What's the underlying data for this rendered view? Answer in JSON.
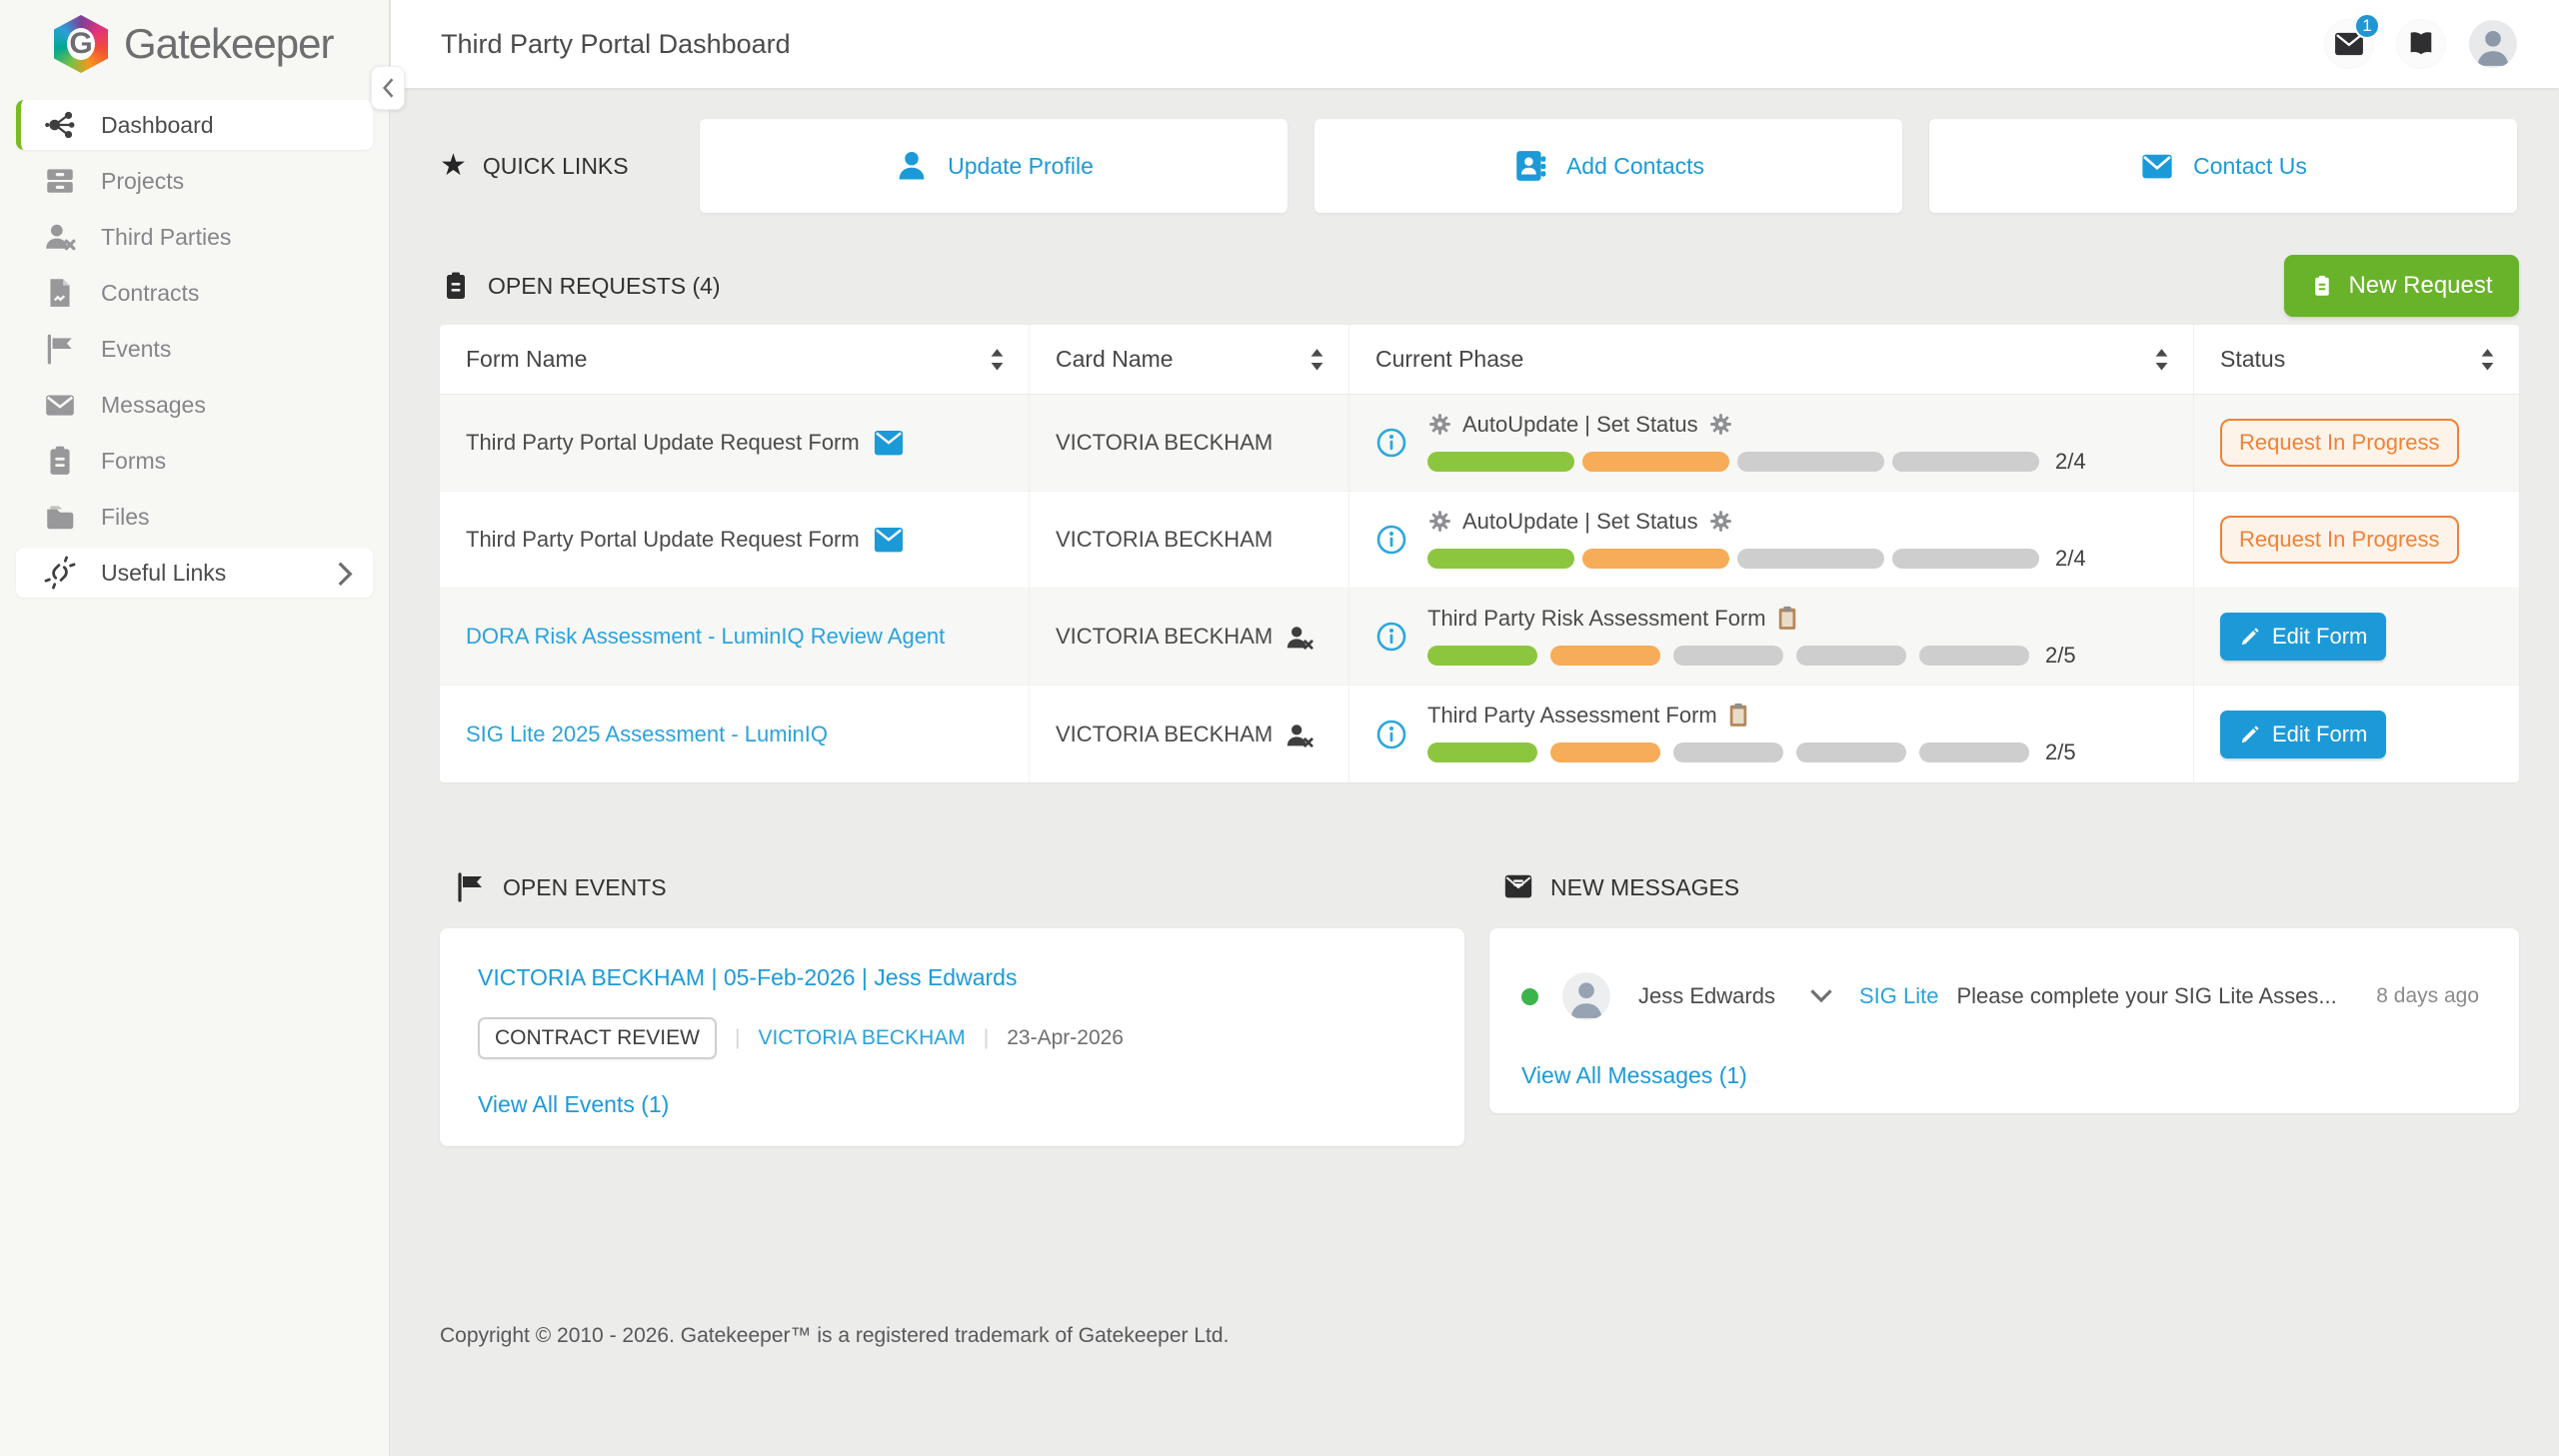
{
  "brand": {
    "name": "Gatekeeper"
  },
  "sidebar": {
    "items": [
      {
        "label": "Dashboard"
      },
      {
        "label": "Projects"
      },
      {
        "label": "Third Parties"
      },
      {
        "label": "Contracts"
      },
      {
        "label": "Events"
      },
      {
        "label": "Messages"
      },
      {
        "label": "Forms"
      },
      {
        "label": "Files"
      },
      {
        "label": "Useful Links"
      }
    ]
  },
  "header": {
    "title": "Third Party Portal Dashboard",
    "mail_badge": "1"
  },
  "quick_links": {
    "heading": "QUICK LINKS",
    "items": [
      {
        "label": "Update Profile",
        "icon": "user-icon"
      },
      {
        "label": "Add Contacts",
        "icon": "address-book-icon"
      },
      {
        "label": "Contact Us",
        "icon": "envelope-icon"
      }
    ]
  },
  "open_requests": {
    "heading": "OPEN REQUESTS (4)",
    "new_request_label": "New Request",
    "columns": [
      "Form Name",
      "Card Name",
      "Current Phase",
      "Status"
    ],
    "rows": [
      {
        "form_name": "Third Party Portal Update Request Form",
        "card_name": "VICTORIA BECKHAM",
        "phase": "AutoUpdate | Set Status",
        "progress": [
          "done",
          "active",
          "todo",
          "todo"
        ],
        "progress_text": "2/4",
        "status": "Request In Progress"
      },
      {
        "form_name": "Third Party Portal Update Request Form",
        "card_name": "VICTORIA BECKHAM",
        "phase": "AutoUpdate | Set Status",
        "progress": [
          "done",
          "active",
          "todo",
          "todo"
        ],
        "progress_text": "2/4",
        "status": "Request In Progress"
      },
      {
        "form_name": "DORA Risk Assessment - LuminIQ Review Agent",
        "card_name": "VICTORIA BECKHAM",
        "phase": "Third Party Risk Assessment Form",
        "progress": [
          "done",
          "active",
          "todo",
          "todo",
          "todo"
        ],
        "progress_text": "2/5",
        "status": "Edit Form"
      },
      {
        "form_name": "SIG Lite 2025 Assessment - LuminIQ",
        "card_name": "VICTORIA BECKHAM",
        "phase": "Third Party Assessment Form",
        "progress": [
          "done",
          "active",
          "todo",
          "todo",
          "todo"
        ],
        "progress_text": "2/5",
        "status": "Edit Form"
      }
    ]
  },
  "open_events": {
    "heading": "OPEN EVENTS",
    "event_title": "VICTORIA BECKHAM | 05-Feb-2026 | Jess Edwards",
    "badge": "CONTRACT REVIEW",
    "card_link": "VICTORIA BECKHAM",
    "date": "23-Apr-2026",
    "view_all": "View All Events (1)"
  },
  "new_messages": {
    "heading": "NEW MESSAGES",
    "sender": "Jess Edwards",
    "subject": "SIG Lite",
    "preview": "Please complete your SIG Lite Asses...",
    "time": "8 days ago",
    "view_all": "View All Messages (1)"
  },
  "footer": {
    "copyright": "Copyright © 2010 - 2026. Gatekeeper™ is a registered trademark of Gatekeeper Ltd."
  },
  "colors": {
    "accent_blue": "#1c9ad8",
    "active_green": "#76bc21",
    "button_green": "#68b32a",
    "progress_done": "#8cc63e",
    "progress_active": "#f6ac58",
    "progress_todo": "#cecece",
    "status_orange": "#ef8236",
    "badge_blue": "#2196d3"
  }
}
